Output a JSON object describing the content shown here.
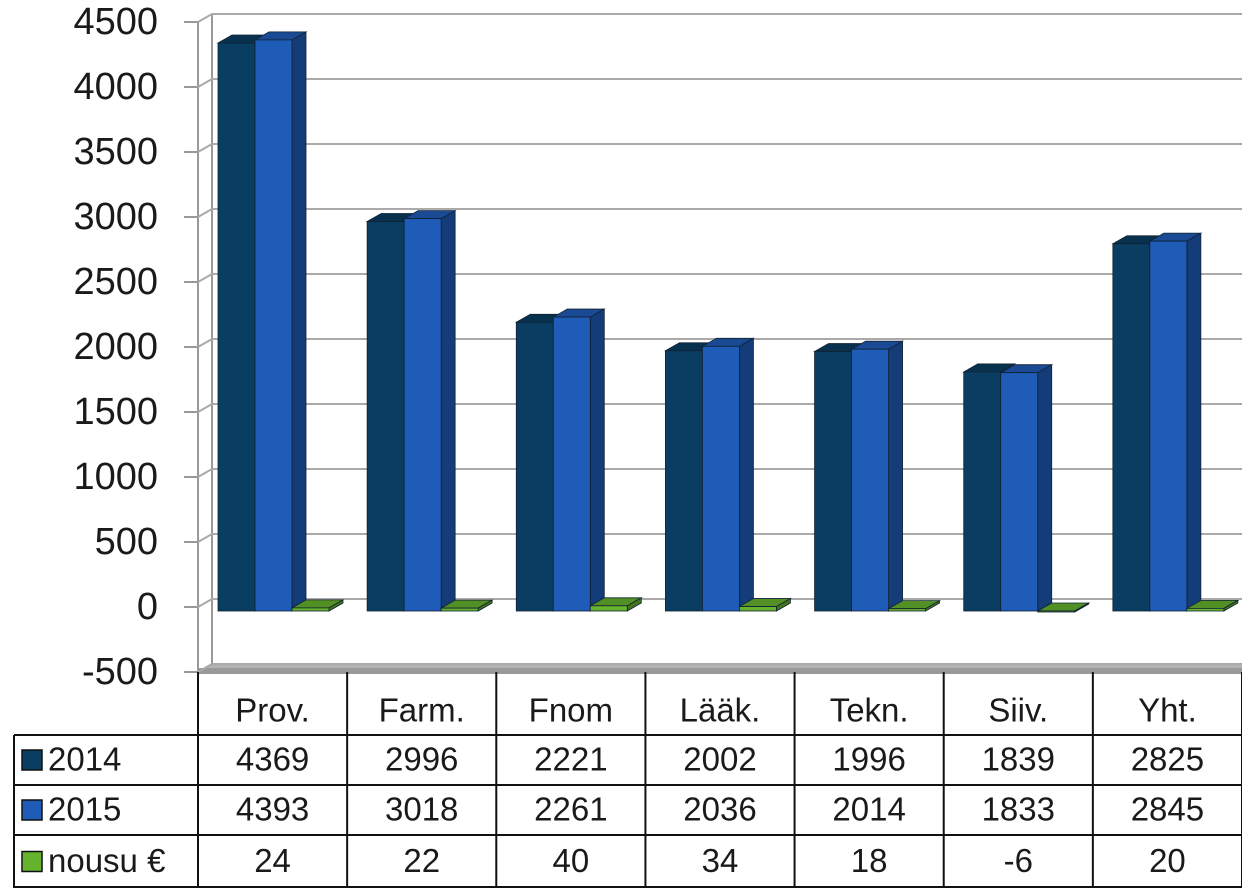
{
  "chart_data": {
    "type": "bar",
    "categories": [
      "Prov.",
      "Farm.",
      "Fnom",
      "Lääk.",
      "Tekn.",
      "Siiv.",
      "Yht."
    ],
    "series": [
      {
        "name": "2014",
        "color": "#0a3d62",
        "values": [
          4369,
          2996,
          2221,
          2002,
          1996,
          1839,
          2825
        ]
      },
      {
        "name": "2015",
        "color": "#1f5cb8",
        "values": [
          4393,
          3018,
          2261,
          2036,
          2014,
          1833,
          2845
        ]
      },
      {
        "name": "nousu €",
        "color": "#66b32e",
        "values": [
          24,
          22,
          40,
          34,
          18,
          -6,
          20
        ]
      }
    ],
    "ylim": [
      -500,
      4500
    ],
    "yticks": [
      -500,
      0,
      500,
      1000,
      1500,
      2000,
      2500,
      3000,
      3500,
      4000,
      4500
    ],
    "grid": true
  }
}
